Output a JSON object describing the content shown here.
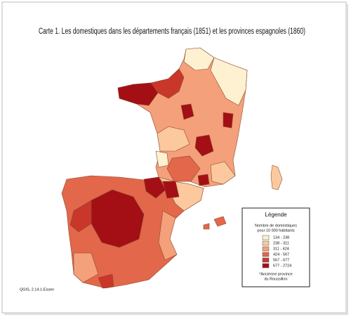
{
  "title": "Carte 1. Les domestiques dans les départements français (1851) et les provinces espagnoles  (1860)",
  "legend": {
    "title": "Légende",
    "subtitle": [
      "Nombre de domestiques",
      "pour 10 000 habitants"
    ],
    "items": [
      {
        "label": "134 - 238",
        "color": "#fdf1d2"
      },
      {
        "label": "238 - 311",
        "color": "#fcc99e"
      },
      {
        "label": "311 - 424",
        "color": "#f4a07a"
      },
      {
        "label": "424 - 567",
        "color": "#e3674a"
      },
      {
        "label": "567 - 677",
        "color": "#c9372a"
      },
      {
        "label": "677 - 2724",
        "color": "#a30f15"
      }
    ],
    "note": [
      "*Ancienne province",
      "du Roussillon"
    ]
  },
  "credit": "QGIS, 2.14.1-Essen"
}
